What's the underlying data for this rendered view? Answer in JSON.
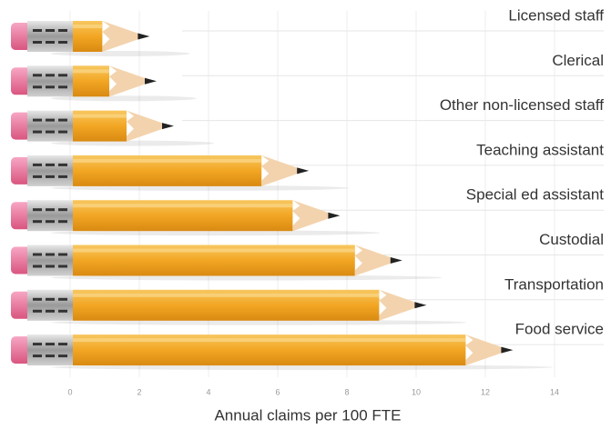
{
  "chart_data": {
    "type": "pencil-bar",
    "categories": [
      "Licensed staff",
      "Clerical",
      "Other non-licensed staff",
      "Teaching assistant",
      "Special ed assistant",
      "Custodial",
      "Transportation",
      "Food service"
    ],
    "values": [
      2.3,
      2.5,
      3.0,
      6.9,
      7.8,
      9.6,
      10.3,
      12.8
    ],
    "xlim": [
      0,
      14
    ],
    "xticks": [
      0,
      2,
      4,
      6,
      8,
      10,
      12,
      14
    ],
    "x_label": "Annual claims per 100 FTE",
    "color": "#f2a623",
    "grid": true
  }
}
